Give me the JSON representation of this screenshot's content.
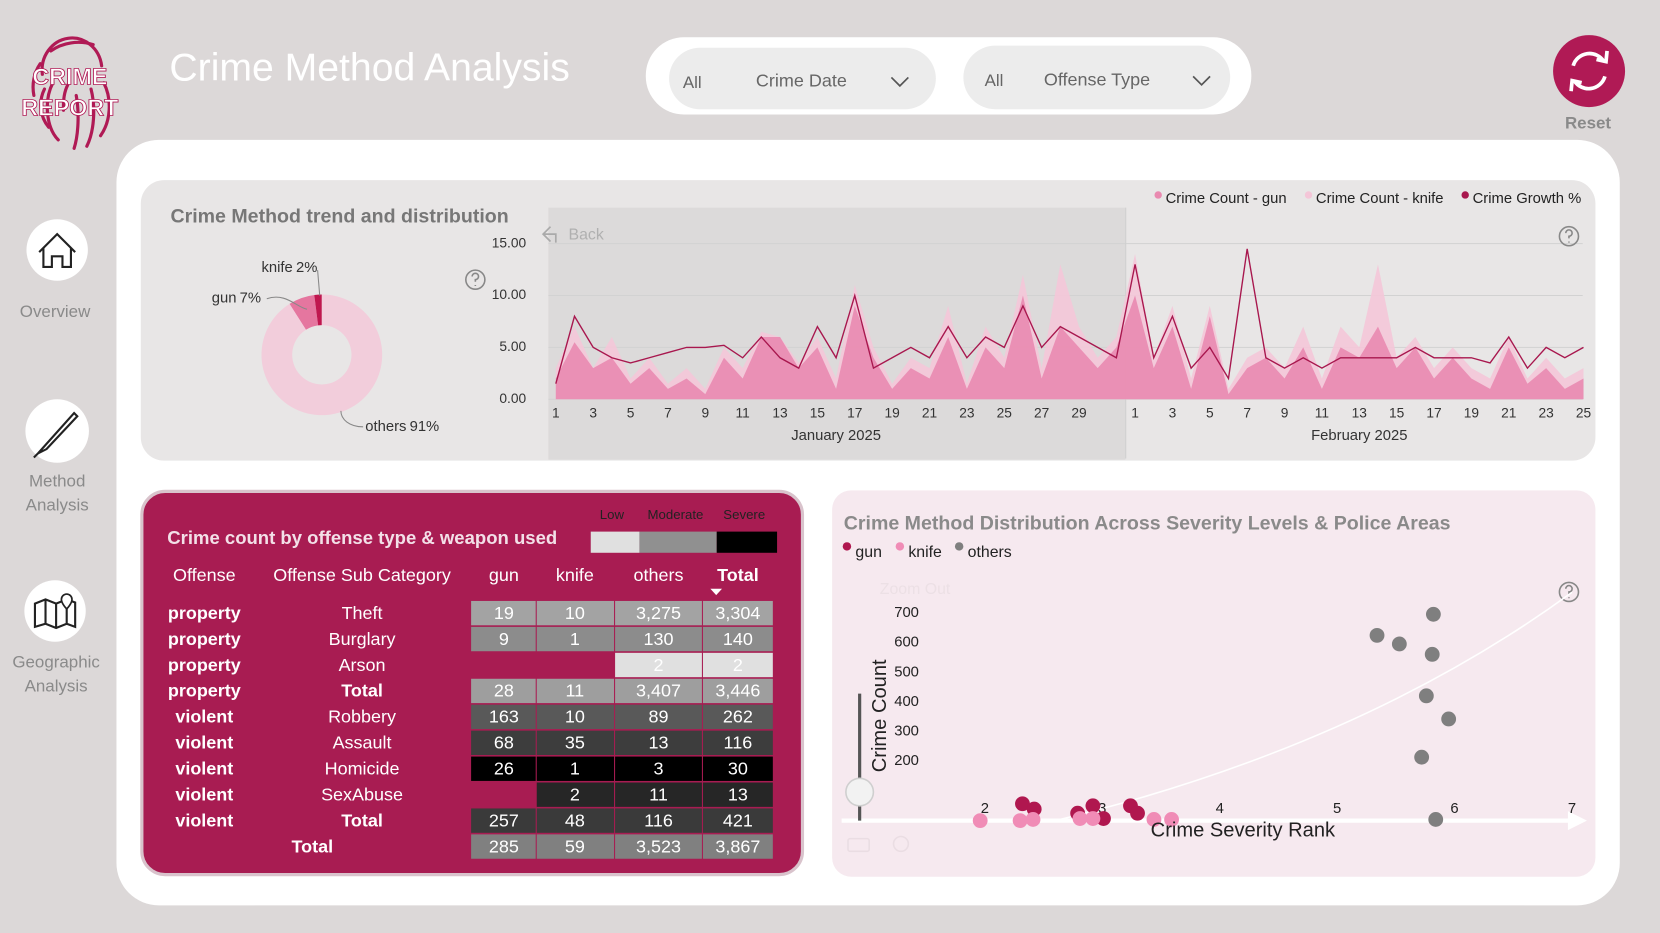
{
  "logo": [
    "CRIME",
    "REPORT"
  ],
  "title": "Crime Method Analysis",
  "filters": [
    {
      "value": "All",
      "label": "Crime Date"
    },
    {
      "value": "All",
      "label": "Offense Type"
    }
  ],
  "reset": "Reset",
  "nav": [
    {
      "label": [
        "Overview"
      ]
    },
    {
      "label": [
        "Method",
        "Analysis"
      ]
    },
    {
      "label": [
        "Geographic",
        "Analysis"
      ]
    }
  ],
  "donut_chart": {
    "type": "pie",
    "title": "Crime Method trend and distribution",
    "categories": [
      "gun",
      "knife",
      "others"
    ],
    "values": [
      7,
      2,
      91
    ],
    "value_labels": [
      "7%",
      "2%",
      "91%"
    ],
    "colors": [
      "#e5769f",
      "#c0174f",
      "#f2cddb"
    ]
  },
  "trend_chart": {
    "type": "area",
    "back": "Back",
    "months": [
      {
        "label": "January 2025",
        "days": [
          1,
          null,
          3,
          null,
          5,
          null,
          7,
          null,
          9,
          null,
          11,
          null,
          13,
          null,
          15,
          null,
          17,
          null,
          19,
          null,
          21,
          null,
          23,
          null,
          25,
          null,
          27,
          null,
          29,
          null,
          null
        ]
      },
      {
        "label": "February 2025",
        "days": [
          1,
          null,
          3,
          null,
          5,
          null,
          7,
          null,
          9,
          null,
          11,
          null,
          13,
          null,
          15,
          null,
          17,
          null,
          19,
          null,
          21,
          null,
          23,
          null,
          25
        ]
      }
    ],
    "ylim": [
      0,
      15
    ],
    "yticks": [
      {
        "value": 0,
        "label": "0.00"
      },
      {
        "value": 5,
        "label": "5.00"
      },
      {
        "value": 10,
        "label": "10.00"
      },
      {
        "value": 15,
        "label": "15.00"
      }
    ],
    "grid": true,
    "series": [
      {
        "name": "Crime Count - gun",
        "color": "#e98ab0",
        "kind": "area",
        "values": [
          2,
          5.5,
          3,
          4,
          1.5,
          3,
          1,
          2,
          0.5,
          4,
          2,
          6,
          6,
          3,
          5,
          1,
          9,
          4,
          1,
          3,
          2,
          6,
          1,
          5,
          3,
          10,
          2,
          7,
          5,
          3,
          5,
          10,
          3,
          7,
          1,
          8,
          0.5,
          3,
          4,
          2,
          5,
          1,
          5,
          4,
          7,
          3,
          5,
          2,
          4,
          2,
          1,
          5,
          1.5,
          3,
          1,
          2
        ]
      },
      {
        "name": "Crime Count - knife",
        "color": "#f4c6d8",
        "kind": "area",
        "values": [
          3,
          7,
          3,
          6,
          2,
          4,
          1.5,
          3,
          1,
          5,
          3,
          6.5,
          6,
          3.5,
          6,
          2,
          11,
          5,
          1.5,
          4,
          3,
          9,
          1.5,
          7,
          4,
          12,
          3,
          13,
          7,
          4,
          6,
          14,
          4,
          9,
          2,
          9,
          1,
          4,
          5,
          3,
          7,
          2,
          7,
          5,
          13,
          4,
          6,
          3,
          5,
          3,
          2,
          6,
          2,
          4,
          2,
          3
        ]
      },
      {
        "name": "Crime Growth %",
        "color": "#a8174e",
        "kind": "line",
        "values": [
          1.5,
          8,
          5,
          4,
          3.5,
          4,
          4.5,
          5,
          5,
          5.2,
          4,
          6,
          4,
          3,
          7,
          4,
          10,
          3,
          4,
          5,
          4,
          7,
          4,
          6,
          5,
          9,
          5,
          7,
          6,
          5,
          4,
          13,
          4,
          8,
          3,
          5,
          2,
          14.5,
          4,
          3,
          4,
          3,
          4,
          4,
          4,
          4,
          5,
          4,
          4,
          4,
          3.5,
          6,
          3,
          5,
          4,
          5
        ]
      }
    ]
  },
  "table": {
    "title": "Crime count by offense type & weapon used",
    "legend": [
      "Low",
      "Moderate",
      "Severe"
    ],
    "legend_colors": [
      "#e0e0e0",
      "#909090",
      "#000000"
    ],
    "columns": [
      "Offense",
      "Offense Sub Category",
      "gun",
      "knife",
      "others",
      "Total"
    ],
    "rows": [
      [
        "property",
        "Theft",
        "19",
        "10",
        "3,275",
        "3,304"
      ],
      [
        "property",
        "Burglary",
        "9",
        "1",
        "130",
        "140"
      ],
      [
        "property",
        "Arson",
        null,
        null,
        "2",
        "2"
      ],
      [
        "property",
        "Total",
        "28",
        "11",
        "3,407",
        "3,446"
      ],
      [
        "violent",
        "Robbery",
        "163",
        "10",
        "89",
        "262"
      ],
      [
        "violent",
        "Assault",
        "68",
        "35",
        "13",
        "116"
      ],
      [
        "violent",
        "Homicide",
        "26",
        "1",
        "3",
        "30"
      ],
      [
        "violent",
        "SexAbuse",
        null,
        "2",
        "11",
        "13"
      ],
      [
        "violent",
        "Total",
        "257",
        "48",
        "116",
        "421"
      ],
      [
        "Total",
        null,
        "285",
        "59",
        "3,523",
        "3,867"
      ]
    ],
    "row_colors": [
      "#a3a3a3",
      "#8c8c8c",
      "#e0e0e0",
      "#9e9e9e",
      "#595959",
      "#3d3d3d",
      "#000000",
      "#262626",
      "#3a3a3a",
      "#808080"
    ]
  },
  "scatter_chart": {
    "type": "scatter",
    "title": "Crime Method Distribution Across Severity Levels & Police Areas",
    "zoom_out": "Zoom Out",
    "x_label": "Crime Severity Rank",
    "y_label": "Crime Count",
    "xlim": [
      0.78,
      7.2
    ],
    "ylim": [
      0,
      750
    ],
    "xticks": [
      2,
      3,
      4,
      5,
      6,
      7
    ],
    "yticks": [
      200,
      300,
      400,
      500,
      600,
      700
    ],
    "series": [
      {
        "name": "gun",
        "color": "#b0174f",
        "x": [
          2.32,
          2.42,
          2.79,
          2.92,
          3.01,
          3.24,
          3.3
        ],
        "values": [
          57,
          39,
          25,
          50,
          7,
          50,
          25
        ]
      },
      {
        "name": "knife",
        "color": "#f08cb6",
        "x": [
          1.96,
          2.3,
          2.41,
          2.81,
          2.92,
          3.44,
          3.59
        ],
        "values": [
          0,
          0,
          4,
          7,
          7,
          4,
          4
        ]
      },
      {
        "name": "others",
        "color": "#7f7f7f",
        "x": [
          5.34,
          5.53,
          5.82,
          5.81,
          5.76,
          5.95,
          5.72,
          5.84
        ],
        "values": [
          625,
          596,
          696,
          561,
          421,
          343,
          214,
          4
        ]
      }
    ]
  }
}
